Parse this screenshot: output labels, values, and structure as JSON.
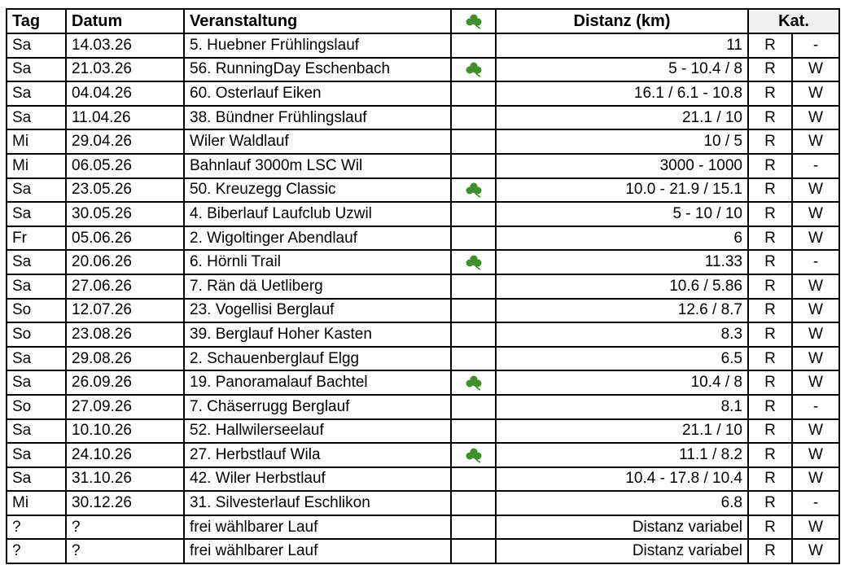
{
  "colors": {
    "clover": "#3f8f2a",
    "kat_header_bg": "#f0f0f0"
  },
  "header": {
    "tag": "Tag",
    "datum": "Datum",
    "veranstaltung": "Veranstaltung",
    "clover_icon": "clover-icon",
    "distanz": "Distanz (km)",
    "kat": "Kat."
  },
  "rows": [
    {
      "tag": "Sa",
      "datum": "14.03.26",
      "name": "5. Huebner Frühlingslauf",
      "clover": false,
      "distanz": "11",
      "k1": "R",
      "k2": "-"
    },
    {
      "tag": "Sa",
      "datum": "21.03.26",
      "name": "56. RunningDay Eschenbach",
      "clover": true,
      "distanz": "5 - 10.4 / 8",
      "k1": "R",
      "k2": "W"
    },
    {
      "tag": "Sa",
      "datum": "04.04.26",
      "name": "60. Osterlauf Eiken",
      "clover": false,
      "distanz": "16.1 / 6.1 - 10.8",
      "k1": "R",
      "k2": "W"
    },
    {
      "tag": "Sa",
      "datum": "11.04.26",
      "name": "38. Bündner Frühlingslauf",
      "clover": false,
      "distanz": "21.1 / 10",
      "k1": "R",
      "k2": "W"
    },
    {
      "tag": "Mi",
      "datum": "29.04.26",
      "name": "Wiler Waldlauf",
      "clover": false,
      "distanz": "10 / 5",
      "k1": "R",
      "k2": "W"
    },
    {
      "tag": "Mi",
      "datum": "06.05.26",
      "name": "Bahnlauf 3000m LSC Wil",
      "clover": false,
      "distanz": "3000 - 1000",
      "k1": "R",
      "k2": "-"
    },
    {
      "tag": "Sa",
      "datum": "23.05.26",
      "name": "50. Kreuzegg Classic",
      "clover": true,
      "distanz": "10.0 - 21.9 / 15.1",
      "k1": "R",
      "k2": "W"
    },
    {
      "tag": "Sa",
      "datum": "30.05.26",
      "name": "4. Biberlauf Laufclub Uzwil",
      "clover": false,
      "distanz": "5 - 10 / 10",
      "k1": "R",
      "k2": "W"
    },
    {
      "tag": "Fr",
      "datum": "05.06.26",
      "name": "2. Wigoltinger Abendlauf",
      "clover": false,
      "distanz": "6",
      "k1": "R",
      "k2": "W"
    },
    {
      "tag": "Sa",
      "datum": "20.06.26",
      "name": "6. Hörnli Trail",
      "clover": true,
      "distanz": "11.33",
      "k1": "R",
      "k2": "-"
    },
    {
      "tag": "Sa",
      "datum": "27.06.26",
      "name": "7. Rän dä Uetliberg",
      "clover": false,
      "distanz": "10.6 / 5.86",
      "k1": "R",
      "k2": "W"
    },
    {
      "tag": "So",
      "datum": "12.07.26",
      "name": "23. Vogellisi Berglauf",
      "clover": false,
      "distanz": "12.6 / 8.7",
      "k1": "R",
      "k2": "W"
    },
    {
      "tag": "So",
      "datum": "23.08.26",
      "name": "39. Berglauf Hoher Kasten",
      "clover": false,
      "distanz": "8.3",
      "k1": "R",
      "k2": "W"
    },
    {
      "tag": "Sa",
      "datum": "29.08.26",
      "name": "2. Schauenberglauf Elgg",
      "clover": false,
      "distanz": "6.5",
      "k1": "R",
      "k2": "W"
    },
    {
      "tag": "Sa",
      "datum": "26.09.26",
      "name": "19. Panoramalauf Bachtel",
      "clover": true,
      "distanz": "10.4 / 8",
      "k1": "R",
      "k2": "W"
    },
    {
      "tag": "So",
      "datum": "27.09.26",
      "name": "7. Chäserrugg Berglauf",
      "clover": false,
      "distanz": "8.1",
      "k1": "R",
      "k2": "-"
    },
    {
      "tag": "Sa",
      "datum": "10.10.26",
      "name": "52. Hallwilerseelauf",
      "clover": false,
      "distanz": "21.1 / 10",
      "k1": "R",
      "k2": "W"
    },
    {
      "tag": "Sa",
      "datum": "24.10.26",
      "name": "27. Herbstlauf Wila",
      "clover": true,
      "distanz": "11.1 / 8.2",
      "k1": "R",
      "k2": "W"
    },
    {
      "tag": "Sa",
      "datum": "31.10.26",
      "name": "42. Wiler Herbstlauf",
      "clover": false,
      "distanz": "10.4 - 17.8 / 10.4",
      "k1": "R",
      "k2": "W"
    },
    {
      "tag": "Mi",
      "datum": "30.12.26",
      "name": "31. Silvesterlauf Eschlikon",
      "clover": false,
      "distanz": "6.8",
      "k1": "R",
      "k2": "-"
    },
    {
      "tag": "?",
      "datum": "?",
      "name": "frei wählbarer Lauf",
      "clover": false,
      "distanz": "Distanz variabel",
      "k1": "R",
      "k2": "W"
    },
    {
      "tag": "?",
      "datum": "?",
      "name": "frei wählbarer Lauf",
      "clover": false,
      "distanz": "Distanz variabel",
      "k1": "R",
      "k2": "W"
    }
  ]
}
